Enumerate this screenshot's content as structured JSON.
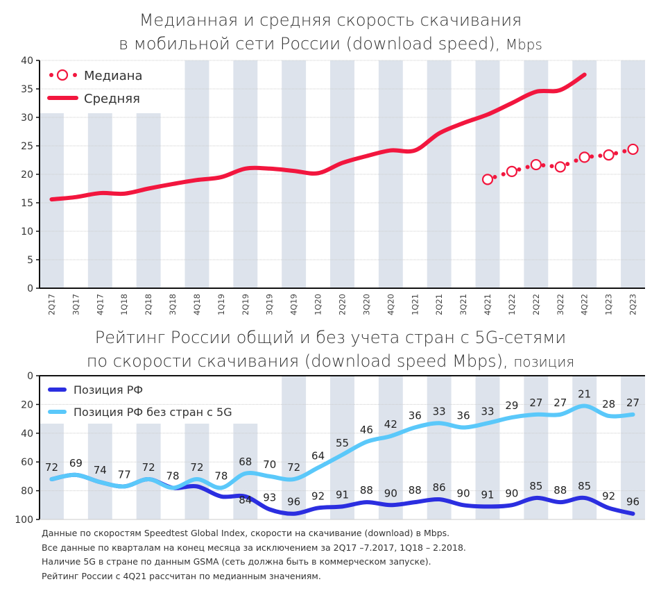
{
  "colors": {
    "mean": "#f2163e",
    "median": "#f2163e",
    "rank": "#2b2ee0",
    "rank_no5g": "#5ac8fa",
    "band": "#dde3ec",
    "grid": "#cccccc"
  },
  "chart_data": [
    {
      "type": "line",
      "title_main": "Медианная и средняя скорость скачивания",
      "title_line2": "в мобильной сети России (download speed),",
      "title_unit": "Mbps",
      "categories": [
        "2Q17",
        "3Q17",
        "4Q17",
        "1Q18",
        "2Q18",
        "3Q18",
        "4Q18",
        "1Q19",
        "2Q19",
        "3Q19",
        "4Q19",
        "1Q20",
        "2Q20",
        "3Q20",
        "4Q20",
        "1Q21",
        "2Q21",
        "3Q21",
        "4Q21",
        "1Q22",
        "2Q22",
        "3Q22",
        "4Q22",
        "1Q23",
        "2Q23"
      ],
      "ylim": [
        0,
        40
      ],
      "yticks": [
        0,
        5,
        10,
        15,
        20,
        25,
        30,
        35,
        40
      ],
      "legend_placement": "top-left",
      "series": [
        {
          "name": "Медиана",
          "style": "dotted-circles",
          "values": [
            null,
            null,
            null,
            null,
            null,
            null,
            null,
            null,
            null,
            null,
            null,
            null,
            null,
            null,
            null,
            null,
            null,
            null,
            19.1,
            20.5,
            21.7,
            21.3,
            23.0,
            23.4,
            24.4
          ]
        },
        {
          "name": "Средняя",
          "style": "solid",
          "values": [
            15.6,
            16.0,
            16.7,
            16.6,
            17.5,
            18.3,
            19.0,
            19.5,
            21.0,
            21.0,
            20.6,
            20.2,
            22.0,
            23.2,
            24.2,
            24.2,
            27.2,
            29.0,
            30.5,
            32.5,
            34.5,
            34.8,
            37.5,
            null,
            null
          ]
        }
      ]
    },
    {
      "type": "line",
      "title_main": "Рейтинг России общий и без учета стран с 5G-сетями",
      "title_line2": "по скорости скачивания (download speed Mbps),",
      "title_unit": "позиция",
      "categories": [
        "2Q17",
        "3Q17",
        "4Q17",
        "1Q18",
        "2Q18",
        "3Q18",
        "4Q18",
        "1Q19",
        "2Q19",
        "3Q19",
        "4Q19",
        "1Q20",
        "2Q20",
        "3Q20",
        "4Q20",
        "1Q21",
        "2Q21",
        "3Q21",
        "4Q21",
        "1Q22",
        "2Q22",
        "3Q22",
        "4Q22",
        "1Q23",
        "2Q23"
      ],
      "ylim": [
        0,
        100
      ],
      "y_inverted": true,
      "yticks": [
        0,
        20,
        40,
        60,
        80,
        100
      ],
      "legend_placement": "top-left",
      "series": [
        {
          "name": "Позиция РФ",
          "values": [
            72,
            69,
            74,
            77,
            72,
            78,
            77,
            84,
            84,
            93,
            96,
            92,
            91,
            88,
            90,
            88,
            86,
            90,
            91,
            90,
            85,
            88,
            85,
            92,
            96
          ],
          "labels": [
            "",
            "",
            "",
            "",
            "",
            "",
            "",
            "",
            "84",
            "93",
            "96",
            "92",
            "91",
            "88",
            "90",
            "88",
            "86",
            "90",
            "91",
            "90",
            "85",
            "88",
            "85",
            "92",
            "96"
          ]
        },
        {
          "name": "Позиция РФ без стран с 5G",
          "values": [
            72,
            69,
            74,
            77,
            72,
            78,
            72,
            78,
            68,
            70,
            72,
            64,
            55,
            46,
            42,
            36,
            33,
            36,
            33,
            29,
            27,
            27,
            21,
            28,
            27
          ],
          "labels": [
            "72",
            "69",
            "74",
            "77",
            "72",
            "78",
            "72",
            "78",
            "68",
            "70",
            "72",
            "64",
            "55",
            "46",
            "42",
            "36",
            "33",
            "36",
            "33",
            "29",
            "27",
            "27",
            "21",
            "28",
            "27"
          ]
        }
      ]
    }
  ],
  "notes": [
    "Данные по скоростям Speedtest Global Index, скорости на скачивание (download) в Mbps.",
    "Все данные по кварталам на конец месяца за исключением за 2Q17 –7.2017, 1Q18 – 2.2018.",
    "Наличие 5G в стране по данным GSMA (сеть должна быть в коммерческом запуске).",
    "Рейтинг России с 4Q21 рассчитан по медианным значениям."
  ]
}
